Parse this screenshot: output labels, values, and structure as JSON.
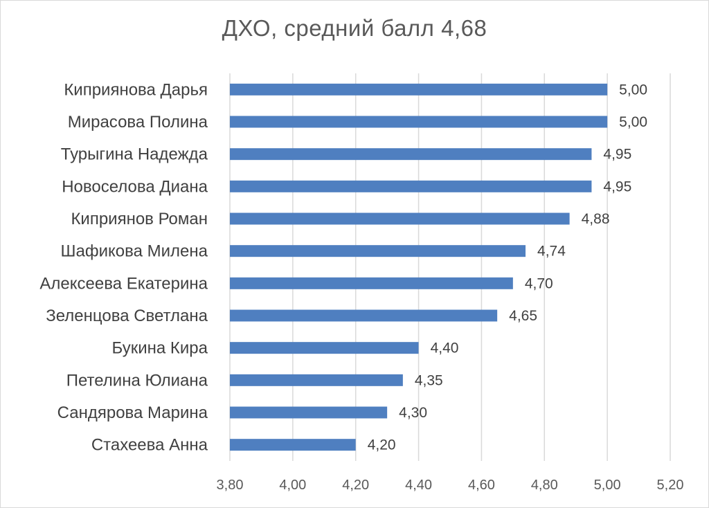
{
  "chart_data": {
    "type": "bar",
    "orientation": "horizontal",
    "title": "ДХО, средний балл 4,68",
    "categories": [
      "Киприянова Дарья",
      "Мирасова Полина",
      "Турыгина Надежда",
      "Новоселова Диана",
      "Киприянов Роман",
      "Шафикова Милена",
      "Алексеева Екатерина",
      "Зеленцова Светлана",
      "Букина Кира",
      "Петелина Юлиана",
      "Сандярова Марина",
      "Стахеева Анна"
    ],
    "values": [
      5.0,
      5.0,
      4.95,
      4.95,
      4.88,
      4.74,
      4.7,
      4.65,
      4.4,
      4.35,
      4.3,
      4.2
    ],
    "value_labels": [
      "5,00",
      "5,00",
      "4,95",
      "4,95",
      "4,88",
      "4,74",
      "4,70",
      "4,65",
      "4,40",
      "4,35",
      "4,30",
      "4,20"
    ],
    "xlim": [
      3.8,
      5.2
    ],
    "x_ticks": [
      3.8,
      4.0,
      4.2,
      4.4,
      4.6,
      4.8,
      5.0,
      5.2
    ],
    "x_tick_labels": [
      "3,80",
      "4,00",
      "4,20",
      "4,40",
      "4,60",
      "4,80",
      "5,00",
      "5,20"
    ],
    "xlabel": "",
    "ylabel": "",
    "grid": true,
    "bar_color": "#4f7fc0",
    "grid_color": "#d9d9d9"
  }
}
